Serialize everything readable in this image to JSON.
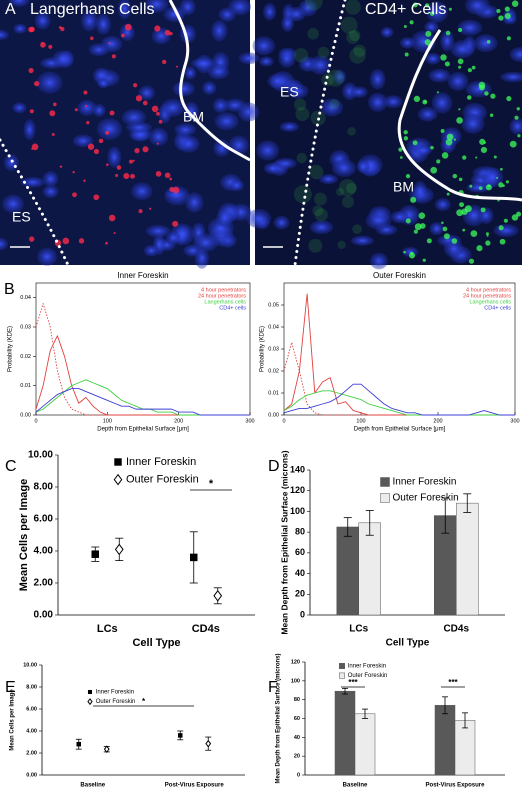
{
  "images": {
    "panel_label": "A",
    "left": {
      "title": "Langerhans Cells",
      "labels": [
        "BM",
        "ES"
      ]
    },
    "right": {
      "title": "CD4+ Cells",
      "labels": [
        "ES",
        "BM"
      ]
    }
  },
  "chart_data": [
    {
      "type": "line",
      "panel_label": "B",
      "title": "Inner Foreskin",
      "xlabel": "Depth from Epithelial Surface [μm]",
      "ylabel": "Probability (KDE)",
      "x": [
        0,
        10,
        20,
        30,
        40,
        50,
        60,
        70,
        80,
        90,
        100,
        110,
        120,
        130,
        140,
        150,
        160,
        170,
        180,
        190,
        200,
        210,
        220,
        230,
        240,
        250,
        260,
        270,
        280,
        290,
        300
      ],
      "xlim": [
        0,
        300
      ],
      "xticks": [
        0,
        100,
        200,
        300
      ],
      "ylim": [
        0,
        0.045
      ],
      "yticks": [
        {
          "value": 0,
          "label": "0.00"
        },
        {
          "value": 0.01,
          "label": "0.01"
        },
        {
          "value": 0.02,
          "label": "0.02"
        },
        {
          "value": 0.03,
          "label": "0.03"
        },
        {
          "value": 0.04,
          "label": "0.04"
        }
      ],
      "series": [
        {
          "name": "4 hour penetrators",
          "color": "#e0413f",
          "style": "dotted",
          "values": [
            0.03,
            0.038,
            0.03,
            0.015,
            0.006,
            0.002,
            0.001,
            0,
            0,
            0,
            0,
            0,
            0,
            0,
            0,
            0,
            0,
            0,
            0,
            0,
            0,
            0,
            0,
            0,
            0,
            0,
            0,
            0,
            0,
            0,
            0
          ]
        },
        {
          "name": "24 hour penetrators",
          "color": "#e0413f",
          "style": "solid",
          "values": [
            0.002,
            0.01,
            0.022,
            0.027,
            0.02,
            0.01,
            0.004,
            0.006,
            0.003,
            0.001,
            0,
            0,
            0,
            0,
            0,
            0,
            0,
            0,
            0,
            0,
            0,
            0,
            0,
            0,
            0,
            0,
            0,
            0,
            0,
            0,
            0
          ]
        },
        {
          "name": "Langerhans cells",
          "color": "#3fcf3f",
          "style": "solid",
          "values": [
            0.001,
            0.002,
            0.004,
            0.006,
            0.008,
            0.01,
            0.011,
            0.012,
            0.011,
            0.01,
            0.009,
            0.007,
            0.005,
            0.004,
            0.003,
            0.002,
            0.002,
            0.001,
            0.001,
            0.001,
            0,
            0,
            0,
            0,
            0,
            0,
            0,
            0,
            0,
            0,
            0
          ]
        },
        {
          "name": "CD4+ cells",
          "color": "#3b3bd6",
          "style": "solid",
          "values": [
            0.001,
            0.003,
            0.005,
            0.007,
            0.008,
            0.009,
            0.009,
            0.008,
            0.007,
            0.006,
            0.005,
            0.004,
            0.003,
            0.003,
            0.002,
            0.002,
            0.002,
            0.002,
            0.002,
            0.002,
            0.001,
            0.001,
            0.001,
            0,
            0,
            0,
            0,
            0,
            0,
            0,
            0
          ]
        }
      ]
    },
    {
      "type": "line",
      "title": "Outer Foreskin",
      "xlabel": "Depth from Epithelial Surface [μm]",
      "ylabel": "Probability (KDE)",
      "x": [
        0,
        10,
        20,
        30,
        40,
        50,
        60,
        70,
        80,
        90,
        100,
        110,
        120,
        130,
        140,
        150,
        160,
        170,
        180,
        190,
        200,
        210,
        220,
        230,
        240,
        250,
        260,
        270,
        280,
        290,
        300
      ],
      "xlim": [
        0,
        300
      ],
      "xticks": [
        0,
        100,
        200,
        300
      ],
      "ylim": [
        0,
        0.06
      ],
      "yticks": [
        {
          "value": 0,
          "label": "0.00"
        },
        {
          "value": 0.01,
          "label": "0.01"
        },
        {
          "value": 0.02,
          "label": "0.02"
        },
        {
          "value": 0.03,
          "label": "0.03"
        },
        {
          "value": 0.04,
          "label": "0.04"
        },
        {
          "value": 0.05,
          "label": "0.05"
        }
      ],
      "series": [
        {
          "name": "4 hour penetrators",
          "color": "#e0413f",
          "style": "dotted",
          "values": [
            0.02,
            0.033,
            0.02,
            0.005,
            0.001,
            0,
            0,
            0,
            0,
            0,
            0,
            0,
            0,
            0,
            0,
            0,
            0,
            0,
            0,
            0,
            0,
            0,
            0,
            0,
            0,
            0,
            0,
            0,
            0,
            0,
            0
          ]
        },
        {
          "name": "24 hour penetrators",
          "color": "#e0413f",
          "style": "solid",
          "values": [
            0.002,
            0.005,
            0.02,
            0.055,
            0.01,
            0.015,
            0.017,
            0.005,
            0.006,
            0.002,
            0.001,
            0,
            0,
            0,
            0,
            0,
            0,
            0,
            0,
            0,
            0,
            0,
            0,
            0,
            0,
            0,
            0,
            0,
            0,
            0,
            0
          ]
        },
        {
          "name": "Langerhans cells",
          "color": "#3fcf3f",
          "style": "solid",
          "values": [
            0.002,
            0.004,
            0.007,
            0.009,
            0.01,
            0.011,
            0.011,
            0.01,
            0.009,
            0.008,
            0.007,
            0.005,
            0.004,
            0.003,
            0.002,
            0.001,
            0,
            0,
            0,
            0,
            0,
            0,
            0,
            0,
            0,
            0,
            0,
            0,
            0,
            0,
            0
          ]
        },
        {
          "name": "CD4+ cells",
          "color": "#3b3bd6",
          "style": "solid",
          "values": [
            0.001,
            0.002,
            0.003,
            0.003,
            0.004,
            0.005,
            0.006,
            0.008,
            0.011,
            0.014,
            0.014,
            0.011,
            0.008,
            0.005,
            0.003,
            0.002,
            0.001,
            0.001,
            0,
            0,
            0,
            0,
            0,
            0,
            0,
            0.001,
            0.002,
            0.001,
            0,
            0,
            0
          ]
        }
      ]
    },
    {
      "type": "errorbar",
      "panel_label": "C",
      "xlabel": "Cell Type",
      "ylabel": "Mean Cells per Image",
      "categories": [
        "LCs",
        "CD4s"
      ],
      "ylim": [
        0,
        10
      ],
      "yticks": [
        {
          "value": 0,
          "label": "0.00"
        },
        {
          "value": 2,
          "label": "2.00"
        },
        {
          "value": 4,
          "label": "4.00"
        },
        {
          "value": 6,
          "label": "6.00"
        },
        {
          "value": 8,
          "label": "8.00"
        },
        {
          "value": 10,
          "label": "10.00"
        }
      ],
      "series": [
        {
          "name": "Inner Foreskin",
          "color": "#000000",
          "marker": "square",
          "values": [
            3.8,
            3.6
          ],
          "errors": [
            0.45,
            1.6
          ]
        },
        {
          "name": "Outer Foreskin",
          "color": "#000000",
          "marker": "diamond",
          "values": [
            4.1,
            1.2
          ],
          "errors": [
            0.7,
            0.5
          ]
        }
      ],
      "annotations": [
        "*"
      ]
    },
    {
      "type": "bar",
      "panel_label": "D",
      "xlabel": "Cell Type",
      "ylabel": "Mean Depth from Epithelial Surface (microns)",
      "categories": [
        "LCs",
        "CD4s"
      ],
      "ylim": [
        0,
        140
      ],
      "yticks": [
        0,
        20,
        40,
        60,
        80,
        100,
        120,
        140
      ],
      "series": [
        {
          "name": "Inner Foreskin",
          "color": "#595959",
          "values": [
            85,
            96
          ],
          "errors": [
            9,
            17
          ]
        },
        {
          "name": "Outer Foreskin",
          "color": "#ececec",
          "values": [
            89,
            108
          ],
          "errors": [
            12,
            9
          ]
        }
      ]
    },
    {
      "type": "errorbar",
      "panel_label": "E",
      "ylabel": "Mean Cells per Image",
      "categories": [
        "Baseline",
        "Post-Virus Exposure"
      ],
      "ylim": [
        0,
        10
      ],
      "yticks": [
        {
          "value": 0,
          "label": "0.00"
        },
        {
          "value": 2,
          "label": "2.00"
        },
        {
          "value": 4,
          "label": "4.00"
        },
        {
          "value": 6,
          "label": "6.00"
        },
        {
          "value": 8,
          "label": "8.00"
        },
        {
          "value": 10,
          "label": "10.00"
        }
      ],
      "series": [
        {
          "name": "Inner Foreskin",
          "color": "#000000",
          "marker": "square",
          "values": [
            2.8,
            3.6
          ],
          "errors": [
            0.45,
            0.4
          ]
        },
        {
          "name": "Outer Foreskin",
          "color": "#000000",
          "marker": "diamond",
          "values": [
            2.35,
            2.85
          ],
          "errors": [
            0.25,
            0.6
          ]
        }
      ],
      "annotations": [
        "*"
      ]
    },
    {
      "type": "bar",
      "panel_label": "F",
      "ylabel": "Mean Depth from Epithelial Surface (microns)",
      "categories": [
        "Baseline",
        "Post-Virus Exposure"
      ],
      "ylim": [
        0,
        120
      ],
      "yticks": [
        0,
        20,
        40,
        60,
        80,
        100,
        120
      ],
      "series": [
        {
          "name": "Inner Foreskin",
          "color": "#595959",
          "values": [
            89,
            74
          ],
          "errors": [
            3,
            9
          ]
        },
        {
          "name": "Outer Foreskin",
          "color": "#ececec",
          "values": [
            65,
            58
          ],
          "errors": [
            5,
            8
          ]
        }
      ],
      "annotations": [
        "***",
        "***"
      ]
    }
  ]
}
